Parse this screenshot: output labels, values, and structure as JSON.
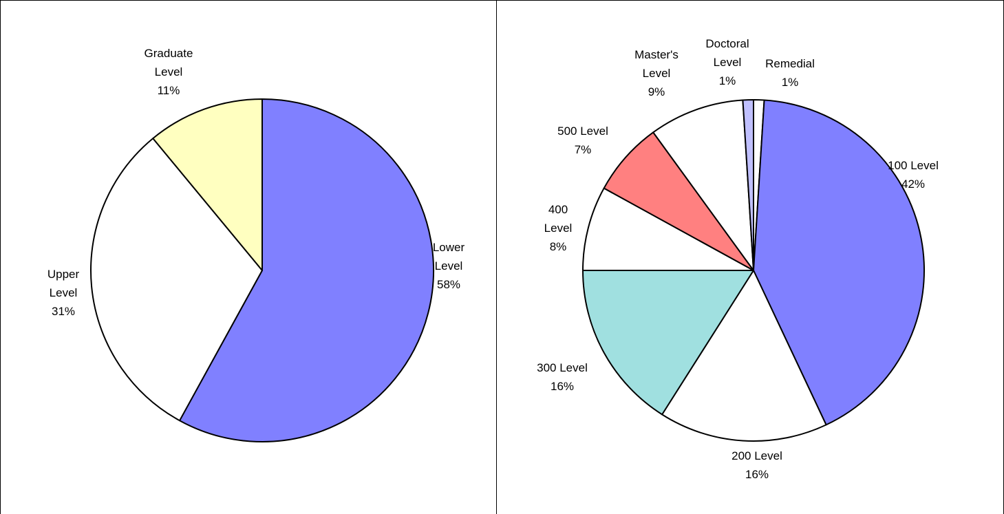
{
  "chart_data": [
    {
      "type": "pie",
      "categories": [
        "Lower Level",
        "Upper Level",
        "Graduate Level"
      ],
      "values": [
        58,
        31,
        11
      ],
      "value_labels": [
        "58%",
        "31%",
        "11%"
      ],
      "colors": [
        "#8080ff",
        "#ffffff",
        "#ffffc0"
      ]
    },
    {
      "type": "pie",
      "categories": [
        "Remedial",
        "100 Level",
        "200 Level",
        "300 Level",
        "400 Level",
        "500 Level",
        "Master's Level",
        "Doctoral Level"
      ],
      "values": [
        1,
        42,
        16,
        16,
        8,
        7,
        9,
        1
      ],
      "value_labels": [
        "1%",
        "42%",
        "16%",
        "16%",
        "8%",
        "7%",
        "9%",
        "1%"
      ],
      "colors": [
        "#ffffff",
        "#8080ff",
        "#ffffff",
        "#a0e0e0",
        "#ffffff",
        "#ff8080",
        "#ffffff",
        "#c0c0ff"
      ]
    }
  ]
}
